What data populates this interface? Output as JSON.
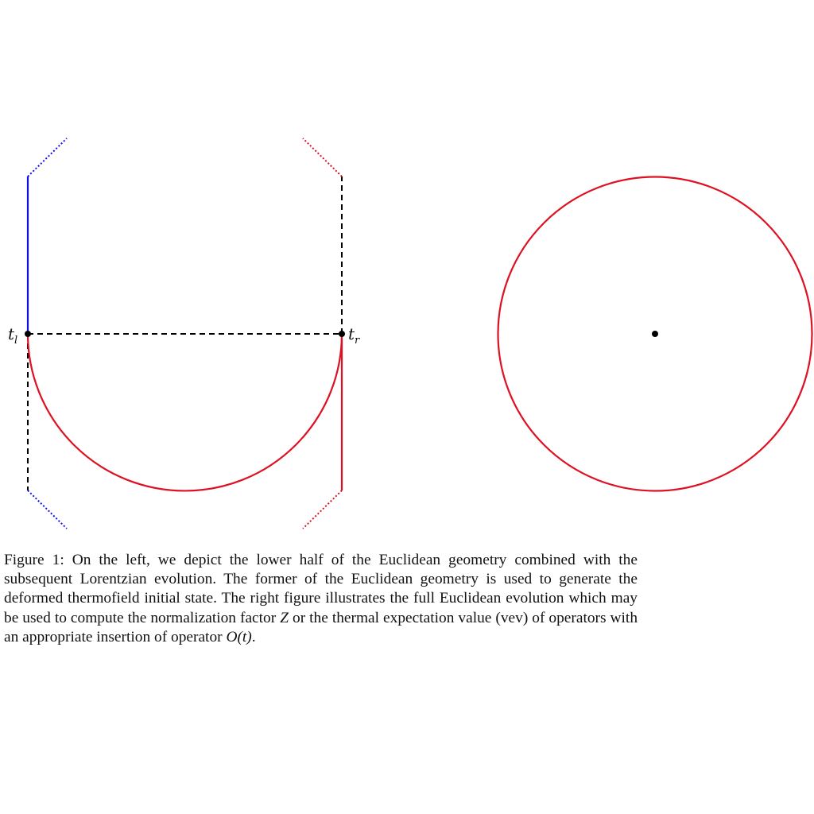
{
  "figure": {
    "left_diagram": {
      "point_left": {
        "symbol": "t",
        "subscript": "l"
      },
      "point_right": {
        "symbol": "t",
        "subscript": "r"
      }
    },
    "colors": {
      "blue": "#1010ee",
      "red": "#dd1122",
      "dashed": "#000000",
      "point": "#000000"
    }
  },
  "caption": {
    "label": "Figure 1:",
    "text_1": "On the left, we depict the lower half of the Euclidean geometry combined with the subsequent Lorentzian evolution. The former of the Euclidean geometry is used to generate the deformed thermofield initial state. The right figure illustrates the full Euclidean evolution which may be used to compute the normalization factor",
    "math_Z": "Z",
    "text_2": "or the thermal expectation value (vev) of operators with an appropriate insertion of operator",
    "math_O": "O(t)",
    "text_3": "."
  }
}
